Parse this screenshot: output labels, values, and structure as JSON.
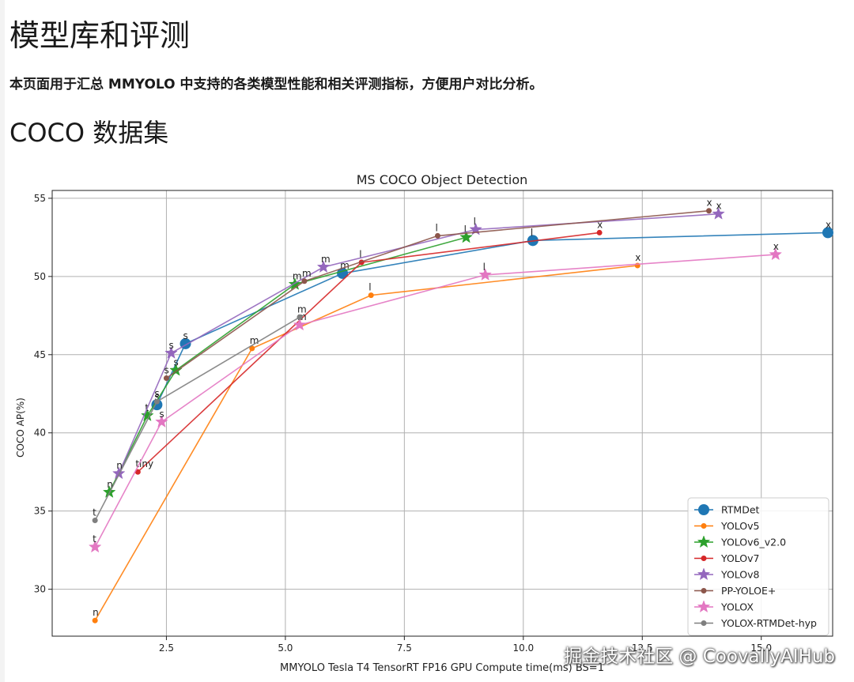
{
  "page": {
    "title": "模型库和评测",
    "description": "本页面用于汇总 MMYOLO 中支持的各类模型性能和相关评测指标，方便用户对比分析。",
    "section_title": "COCO 数据集",
    "watermark": "掘金技术社区 @ CoovallyAIHub"
  },
  "chart_data": {
    "type": "line",
    "title": "MS COCO Object Detection",
    "xlabel": "MMYOLO Tesla T4 TensorRT FP16 GPU Compute time(ms) BS=1",
    "ylabel": "COCO AP(%)",
    "xlim": [
      0.1,
      16.5
    ],
    "ylim": [
      27.0,
      55.5
    ],
    "xticks": [
      2.5,
      5.0,
      7.5,
      10.0,
      12.5,
      15.0
    ],
    "xtick_labels": [
      "2.5",
      "5.0",
      "7.5",
      "10.0",
      "12.5",
      "15.0"
    ],
    "yticks": [
      30,
      35,
      40,
      45,
      50,
      55
    ],
    "ytick_labels": [
      "30",
      "35",
      "40",
      "45",
      "50",
      "55"
    ],
    "grid": true,
    "legend_position": "bottom-right",
    "series": [
      {
        "name": "RTMDet",
        "color": "#1f77b4",
        "marker": "circle-large",
        "points": [
          [
            2.3,
            41.8,
            "s"
          ],
          [
            2.9,
            45.7,
            "s"
          ],
          [
            6.2,
            50.2,
            "m"
          ],
          [
            10.2,
            52.3,
            "l"
          ],
          [
            16.4,
            52.8,
            "x"
          ]
        ]
      },
      {
        "name": "YOLOv5",
        "color": "#ff7f0e",
        "marker": "circle",
        "points": [
          [
            1.0,
            28.0,
            "n"
          ],
          [
            4.3,
            45.4,
            "m"
          ],
          [
            6.8,
            48.8,
            "l"
          ],
          [
            12.4,
            50.7,
            "x"
          ]
        ]
      },
      {
        "name": "YOLOv6_v2.0",
        "color": "#2ca02c",
        "marker": "star",
        "points": [
          [
            1.3,
            36.2,
            "n"
          ],
          [
            2.1,
            41.1,
            "t"
          ],
          [
            2.7,
            44.0,
            "s"
          ],
          [
            5.2,
            49.5,
            "m"
          ],
          [
            8.8,
            52.5,
            "l"
          ]
        ]
      },
      {
        "name": "YOLOv7",
        "color": "#d62728",
        "marker": "circle",
        "points": [
          [
            1.9,
            37.5,
            "tiny"
          ],
          [
            6.6,
            50.9,
            "l"
          ],
          [
            11.6,
            52.8,
            "x"
          ]
        ]
      },
      {
        "name": "YOLOv8",
        "color": "#9467bd",
        "marker": "star",
        "points": [
          [
            1.5,
            37.4,
            "n"
          ],
          [
            2.6,
            45.1,
            "s"
          ],
          [
            5.8,
            50.6,
            "m"
          ],
          [
            9.0,
            53.0,
            "l"
          ],
          [
            14.1,
            54.0,
            "x"
          ]
        ]
      },
      {
        "name": "PP-YOLOE+",
        "color": "#8c564b",
        "marker": "circle",
        "points": [
          [
            2.5,
            43.5,
            "s"
          ],
          [
            5.4,
            49.7,
            "m"
          ],
          [
            8.2,
            52.6,
            "l"
          ],
          [
            13.9,
            54.2,
            "x"
          ]
        ]
      },
      {
        "name": "YOLOX",
        "color": "#e377c2",
        "marker": "star",
        "points": [
          [
            1.0,
            32.7,
            "t"
          ],
          [
            2.4,
            40.7,
            "s"
          ],
          [
            5.3,
            46.9,
            "m"
          ],
          [
            9.2,
            50.1,
            "l"
          ],
          [
            15.3,
            51.4,
            "x"
          ]
        ]
      },
      {
        "name": "YOLOX-RTMDet-hyp",
        "color": "#7f7f7f",
        "marker": "circle",
        "points": [
          [
            1.0,
            34.4,
            "t"
          ],
          [
            2.3,
            42.0,
            "s"
          ],
          [
            5.3,
            47.4,
            "m"
          ]
        ]
      }
    ]
  }
}
